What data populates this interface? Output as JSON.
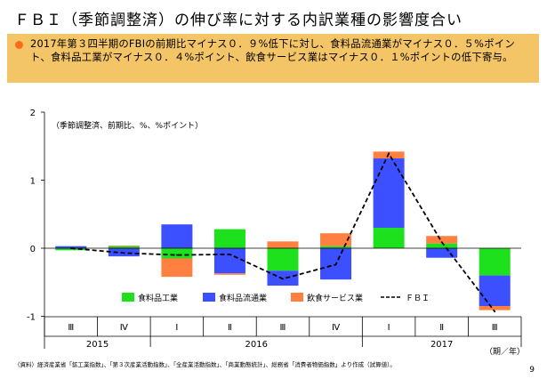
{
  "header": {
    "title": "ＦＢＩ（季節調整済）の伸び率に対する内訳業種の影響度合い"
  },
  "summary": {
    "text": "2017年第３四半期のFBIの前期比マイナス０．９%低下に対し、食料品流通業がマイナス０．５%ポイント、食料品工業がマイナス０．４%ポイント、飲食サービス業はマイナス０．１%ポイントの低下寄与。"
  },
  "chart_data": {
    "type": "bar",
    "stacked": true,
    "unit_note": "（季節調整済、前期比、%、%ポイント）",
    "categories": [
      "Ⅲ",
      "Ⅳ",
      "Ⅰ",
      "Ⅱ",
      "Ⅲ",
      "Ⅳ",
      "Ⅰ",
      "Ⅱ",
      "Ⅲ"
    ],
    "years": [
      {
        "label": "2015",
        "span": [
          0,
          1
        ]
      },
      {
        "label": "2016",
        "span": [
          2,
          5
        ]
      },
      {
        "label": "2017",
        "span": [
          6,
          8
        ]
      }
    ],
    "x_axis_suffix": "（期／年）",
    "ylim": [
      -1,
      2
    ],
    "yticks": [
      -1,
      0,
      1,
      2
    ],
    "series": [
      {
        "name": "食料品工業",
        "color": "#1ee11e",
        "values": [
          -0.03,
          0.03,
          -0.15,
          0.28,
          -0.33,
          0.03,
          0.3,
          0.07,
          -0.4
        ]
      },
      {
        "name": "食料品流通業",
        "color": "#3c50ff",
        "values": [
          0.03,
          -0.12,
          0.35,
          -0.37,
          -0.22,
          -0.46,
          1.02,
          -0.14,
          -0.45
        ]
      },
      {
        "name": "飲食サービス業",
        "color": "#ff8040",
        "values": [
          0.0,
          0.01,
          -0.27,
          -0.02,
          0.1,
          0.19,
          0.1,
          0.11,
          -0.06
        ]
      }
    ],
    "line": {
      "name": "ＦＢＩ",
      "color": "#000000",
      "values": [
        0.0,
        -0.07,
        -0.1,
        -0.09,
        -0.45,
        -0.24,
        1.39,
        0.09,
        -0.93
      ]
    },
    "legend_position": "bottom"
  },
  "footer": {
    "source": "（資料）経済産業省「鉱工業指数」、「第３次産業活動指数」、「全産業活動指数」、「商業動態統計」、総務省「消費者物価指数」より作成（試算値）。",
    "page_number": "9"
  }
}
